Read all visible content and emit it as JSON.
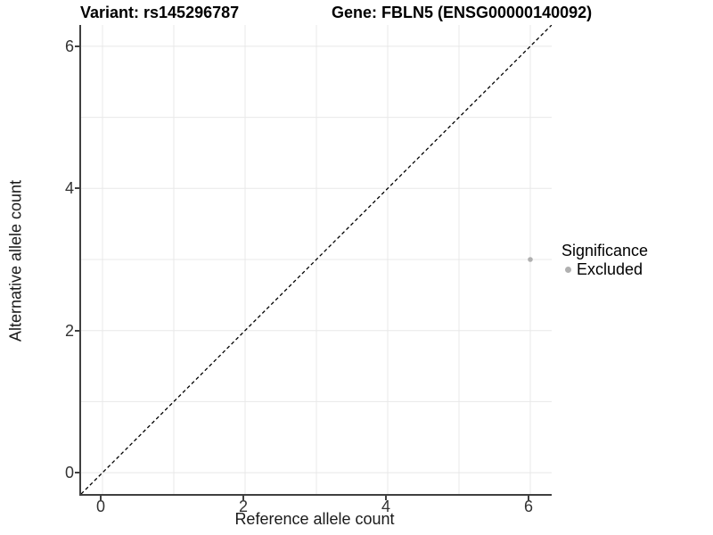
{
  "chart_data": {
    "type": "scatter",
    "title_left": "Variant: rs145296787",
    "title_right": "Gene: FBLN5 (ENSG00000140092)",
    "xlabel": "Reference allele count",
    "ylabel": "Alternative allele count",
    "x_ticks": [
      0,
      2,
      4,
      6
    ],
    "y_ticks": [
      0,
      2,
      4,
      6
    ],
    "grid_positions": [
      0,
      1,
      2,
      3,
      4,
      5,
      6
    ],
    "xlim": [
      -0.3,
      6.3
    ],
    "ylim": [
      -0.3,
      6.3
    ],
    "grid": "on",
    "points": [
      {
        "x": 6,
        "y": 3,
        "significance": "Excluded"
      }
    ],
    "reference_line": {
      "equation": "y = x",
      "style": "dashed",
      "color": "#000000"
    },
    "legend": {
      "position": "right",
      "title": "Significance",
      "entries": [
        {
          "label": "Excluded",
          "color": "#b0b0b0"
        }
      ]
    }
  },
  "colors": {
    "point": "#b0b0b0",
    "gridline": "#e8e8e8",
    "axis_line": "#404040",
    "dashed_line": "#000000",
    "background": "#ffffff"
  }
}
